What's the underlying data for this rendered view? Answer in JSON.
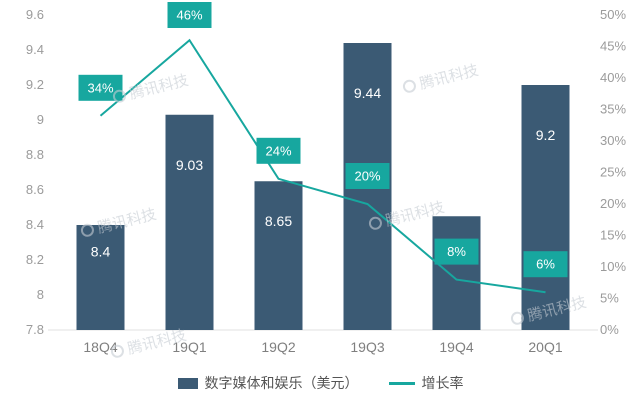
{
  "chart_data": {
    "type": "bar+line",
    "categories": [
      "18Q4",
      "19Q1",
      "19Q2",
      "19Q3",
      "19Q4",
      "20Q1"
    ],
    "series": [
      {
        "name": "数字媒体和娱乐（美元）",
        "type": "bar",
        "axis": "left",
        "values": [
          8.4,
          9.03,
          8.65,
          9.44,
          8.45,
          9.2
        ],
        "value_labels": [
          "8.4",
          "9.03",
          "8.65",
          "9.44",
          "8.45",
          "9.2"
        ],
        "color": "#3b5a74"
      },
      {
        "name": "增长率",
        "type": "line",
        "axis": "right",
        "values": [
          34,
          46,
          24,
          20,
          8,
          6
        ],
        "value_labels": [
          "34%",
          "46%",
          "24%",
          "20%",
          "8%",
          "6%"
        ],
        "color": "#17a79f"
      }
    ],
    "left_axis": {
      "min": 7.8,
      "max": 9.6,
      "step": 0.2,
      "ticks": [
        "7.8",
        "8",
        "8.2",
        "8.4",
        "8.6",
        "8.8",
        "9",
        "9.2",
        "9.4",
        "9.6"
      ]
    },
    "right_axis": {
      "min": 0,
      "max": 50,
      "step": 5,
      "ticks": [
        "0%",
        "5%",
        "10%",
        "15%",
        "20%",
        "25%",
        "30%",
        "35%",
        "40%",
        "45%",
        "50%"
      ]
    },
    "grid": "off",
    "legend_position": "bottom",
    "legend": [
      {
        "label": "数字媒体和娱乐（美元）",
        "marker": "square",
        "color": "#3b5a74"
      },
      {
        "label": "增长率",
        "marker": "line",
        "color": "#17a79f"
      }
    ]
  },
  "watermark": {
    "text": "腾讯科技"
  }
}
